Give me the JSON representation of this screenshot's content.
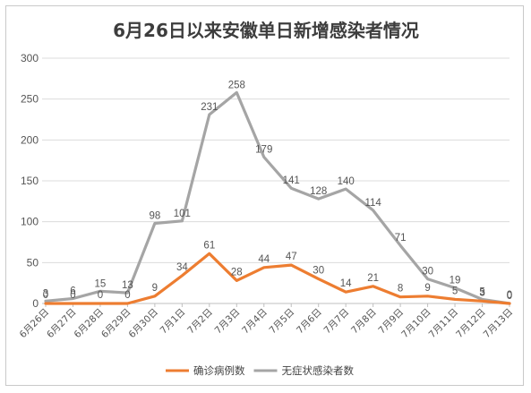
{
  "chart_data": {
    "type": "line",
    "title": "6月26日以来安徽单日新增感染者情况",
    "xlabel": "",
    "ylabel": "",
    "ylim": [
      0,
      300
    ],
    "yticks": [
      0,
      50,
      100,
      150,
      200,
      250,
      300
    ],
    "grid": true,
    "legend_position": "bottom",
    "categories": [
      "6月26日",
      "6月27日",
      "6月28日",
      "6月29日",
      "6月30日",
      "7月1日",
      "7月2日",
      "7月3日",
      "7月4日",
      "7月5日",
      "7月6日",
      "7月7日",
      "7月8日",
      "7月9日",
      "7月10日",
      "7月11日",
      "7月12日",
      "7月13日"
    ],
    "series": [
      {
        "name": "确诊病例数",
        "color": "#ed7d31",
        "values": [
          0,
          0,
          0,
          0,
          9,
          34,
          61,
          28,
          44,
          47,
          30,
          14,
          21,
          8,
          9,
          5,
          3,
          0
        ]
      },
      {
        "name": "无症状感染者数",
        "color": "#a5a5a5",
        "values": [
          3,
          6,
          15,
          13,
          98,
          101,
          231,
          258,
          179,
          141,
          128,
          140,
          114,
          71,
          30,
          19,
          5,
          0
        ]
      }
    ]
  }
}
